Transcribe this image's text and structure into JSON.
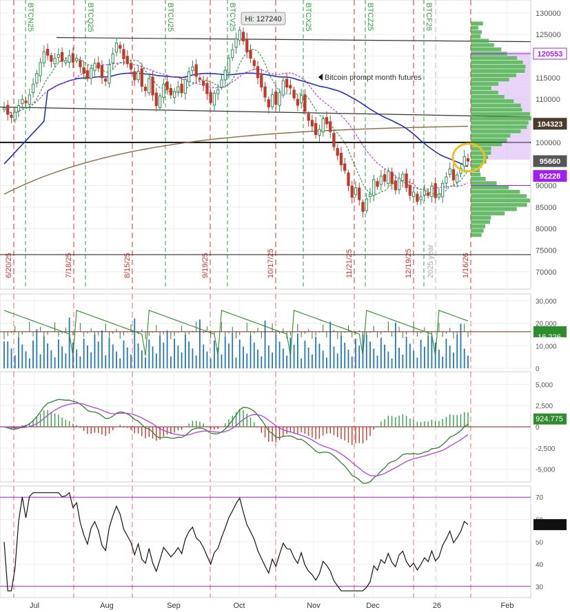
{
  "chart_data": [
    {
      "type": "candlestick",
      "annotation_high": "Hi: 127240",
      "annotation_text": "Bitcoin prompt month futures",
      "y_ticks": [
        "130000",
        "125000",
        "120000",
        "115000",
        "110000",
        "105000",
        "100000",
        "95000",
        "90000",
        "85000",
        "80000",
        "75000",
        "70000"
      ],
      "ylim": [
        66000,
        133000
      ],
      "price_labels": [
        {
          "label": "120553",
          "value": 120553,
          "color": "#a020f0",
          "bg": "#ffffff"
        },
        {
          "label": "104323",
          "value": 104323,
          "color": "#ffffff",
          "bg": "#4a3b2b"
        },
        {
          "label": "95660",
          "value": 95660,
          "color": "#ffffff",
          "bg": "#555555"
        },
        {
          "label": "92228",
          "value": 92228,
          "color": "#ffffff",
          "bg": "#a020f0"
        }
      ],
      "contract_labels": [
        "BTCN25",
        "BTCQ25",
        "BTCU25",
        "BTCV25",
        "BTCX25",
        "BTCZ25",
        "BTCF26"
      ],
      "date_labels": [
        "6/20/25",
        "7/18/25",
        "8/15/25",
        "9/19/25",
        "10/17/25",
        "11/21/25",
        "12/19/25",
        "2025 year",
        "1/16/26"
      ],
      "horizontal_levels": [
        124300,
        100000,
        74000
      ],
      "highlight_color": "#f0c020",
      "closes": [
        108000,
        106500,
        105800,
        107000,
        108500,
        110000,
        109200,
        111000,
        113500,
        116000,
        118500,
        121000,
        120200,
        118800,
        119500,
        120300,
        118800,
        119000,
        120100,
        118600,
        119500,
        117500,
        116000,
        114800,
        117200,
        118300,
        117200,
        115000,
        114200,
        118000,
        120500,
        123000,
        121800,
        119400,
        118200,
        117000,
        114500,
        116500,
        113000,
        112000,
        114800,
        111000,
        108500,
        110800,
        113500,
        112300,
        111000,
        111800,
        112900,
        111500,
        114600,
        116400,
        117500,
        115300,
        114600,
        113200,
        111300,
        109200,
        111400,
        112200,
        114500,
        116700,
        119500,
        121500,
        124000,
        126000,
        123500,
        121000,
        119500,
        117800,
        115000,
        112800,
        110500,
        108200,
        111100,
        108800,
        111500,
        114300,
        112800,
        112600,
        110300,
        108600,
        110900,
        107200,
        105100,
        103800,
        101800,
        103000,
        105500,
        104300,
        102500,
        99000,
        97000,
        94800,
        93500,
        90000,
        87300,
        89500,
        86700,
        84000,
        86900,
        88000,
        91400,
        89800,
        92200,
        91000,
        93300,
        90500,
        89000,
        91700,
        92600,
        89500,
        87700,
        88500,
        86300,
        87400,
        88800,
        87700,
        89900,
        87200,
        88000,
        90500,
        92000,
        93900,
        91300,
        92500,
        94000,
        96700,
        95660
      ],
      "volume_ticks": [
        "30,000",
        "20,000",
        "10,000",
        "0"
      ],
      "volume_last": "16,226",
      "volume_avg": 16226,
      "volume_ylim": [
        0,
        33000
      ],
      "macd_ticks": [
        "5,000",
        "2,500",
        "0",
        "-2,500",
        "-5,000"
      ],
      "macd_last": "924.775",
      "macd_ylim": [
        -6500,
        6500
      ],
      "rsi_ticks": [
        "70",
        "60",
        "50",
        "40",
        "30"
      ],
      "rsi_last": "57.6858",
      "rsi_ylim": [
        25,
        75
      ],
      "x_months": [
        "Jul",
        "Aug",
        "Sep",
        "Oct",
        "Nov",
        "Dec",
        "26",
        "Feb"
      ]
    }
  ]
}
